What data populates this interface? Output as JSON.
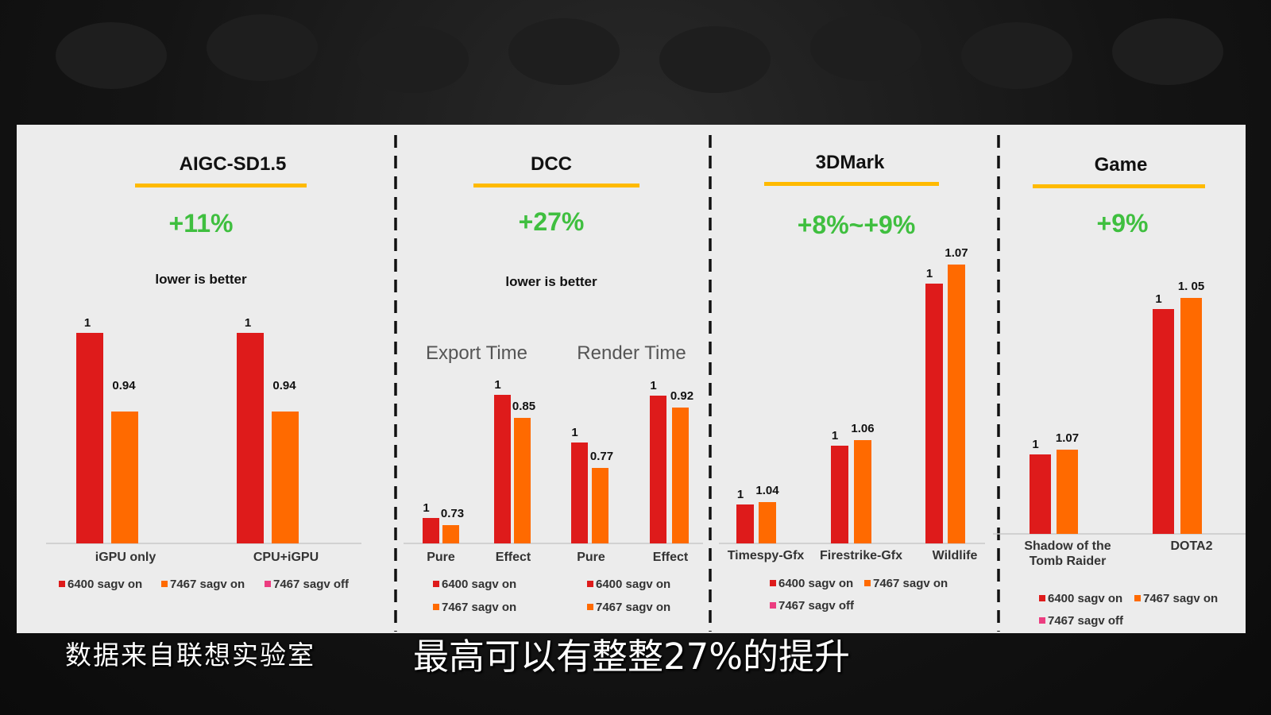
{
  "colors": {
    "panel_bg": "#ececec",
    "series_6400_on": "#de1b1b",
    "series_7467_on": "#ff6a00",
    "series_7467_off": "#ec3d80",
    "gain_green": "#3fbf3f",
    "title_underline": "#ffba00"
  },
  "captions": {
    "left": "数据来自联想实验室",
    "center": "最高可以有整整27%的提升"
  },
  "chart_data": [
    {
      "type": "bar",
      "title": "AIGC-SD1.5",
      "gain": "+11%",
      "note": "lower is better",
      "categories": [
        "iGPU only",
        "CPU+iGPU"
      ],
      "series": [
        {
          "name": "6400 sagv on",
          "values": [
            1,
            1
          ],
          "labels": [
            "1",
            "1"
          ]
        },
        {
          "name": "7467 sagv on",
          "values": [
            0.94,
            0.94
          ],
          "labels": [
            "0.94",
            "0.94"
          ]
        }
      ],
      "legend": [
        "6400 sagv on",
        "7467 sagv on",
        "7467 sagv off"
      ]
    },
    {
      "type": "bar",
      "title": "DCC",
      "gain": "+27%",
      "note": "lower is better",
      "groups": [
        "Export Time",
        "Render Time"
      ],
      "categories": [
        "Pure",
        "Effect",
        "Pure",
        "Effect"
      ],
      "series": [
        {
          "name": "6400 sagv on",
          "values": [
            1,
            1,
            1,
            1
          ],
          "labels": [
            "1",
            "1",
            "1",
            "1"
          ]
        },
        {
          "name": "7467 sagv on",
          "values": [
            0.73,
            0.85,
            0.77,
            0.92
          ],
          "labels": [
            "0.73",
            "0.85",
            "0.77",
            "0.92"
          ]
        }
      ],
      "legend": [
        "6400 sagv on",
        "7467 sagv on"
      ]
    },
    {
      "type": "bar",
      "title": "3DMark",
      "gain": "+8%~+9%",
      "categories": [
        "Timespy-Gfx",
        "Firestrike-Gfx",
        "Wildlife"
      ],
      "series": [
        {
          "name": "6400 sagv on",
          "values": [
            1,
            1,
            1
          ],
          "labels": [
            "1",
            "1",
            "1"
          ]
        },
        {
          "name": "7467 sagv on",
          "values": [
            1.04,
            1.06,
            1.07
          ],
          "labels": [
            "1.04",
            "1.06",
            "1.07"
          ]
        }
      ],
      "legend": [
        "6400 sagv on",
        "7467 sagv on",
        "7467 sagv off"
      ]
    },
    {
      "type": "bar",
      "title": "Game",
      "gain": "+9%",
      "categories": [
        "Shadow of the Tomb Raider",
        "DOTA2"
      ],
      "series": [
        {
          "name": "6400 sagv on",
          "values": [
            1,
            1
          ],
          "labels": [
            "1",
            "1"
          ]
        },
        {
          "name": "7467 sagv on",
          "values": [
            1.07,
            1.05
          ],
          "labels": [
            "1.07",
            "1. 05"
          ]
        }
      ],
      "legend": [
        "6400 sagv on",
        "7467 sagv on",
        "7467 sagv off"
      ]
    }
  ]
}
